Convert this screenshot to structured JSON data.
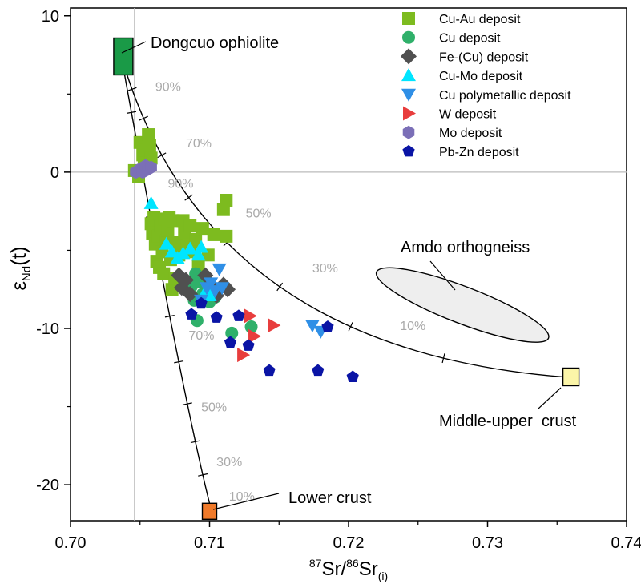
{
  "chart_data": {
    "type": "scatter",
    "xlabel": {
      "base": "Sr",
      "sup1": "87",
      "mid": "Sr/",
      "sup2": "86",
      "sub": "(i)"
    },
    "ylabel": {
      "main": "ε",
      "sub": "Nd",
      "tail": "(t)"
    },
    "xlim": [
      0.7,
      0.74
    ],
    "ylim": [
      -22.3,
      10.5
    ],
    "x_ticks": [
      {
        "value": 0.7,
        "label": "0.70"
      },
      {
        "value": 0.71,
        "label": "0.71"
      },
      {
        "value": 0.72,
        "label": "0.72"
      },
      {
        "value": 0.73,
        "label": "0.73"
      },
      {
        "value": 0.74,
        "label": "0.74"
      }
    ],
    "y_ticks": [
      {
        "value": 10,
        "label": "10"
      },
      {
        "value": 0,
        "label": "0"
      },
      {
        "value": -10,
        "label": "-10"
      },
      {
        "value": -20,
        "label": "-20"
      }
    ],
    "reference_lines": {
      "x": 0.7046,
      "y": 0
    },
    "legend_position": "top-right",
    "series": [
      {
        "name": "Cu-Au deposit",
        "marker": "square",
        "color": "#7dbb1f",
        "points": [
          [
            0.7046,
            0.1
          ],
          [
            0.7049,
            -0.3
          ],
          [
            0.705,
            1.9
          ],
          [
            0.7052,
            1.1
          ],
          [
            0.7053,
            0.4
          ],
          [
            0.7054,
            1.4
          ],
          [
            0.7056,
            2.4
          ],
          [
            0.7057,
            1.7
          ],
          [
            0.7058,
            0.9
          ],
          [
            0.7058,
            -3.3
          ],
          [
            0.7059,
            -3.9
          ],
          [
            0.706,
            -2.9
          ],
          [
            0.7061,
            -4.6
          ],
          [
            0.7062,
            -5.7
          ],
          [
            0.7063,
            -4.1
          ],
          [
            0.7064,
            -6.1
          ],
          [
            0.7065,
            -3.4
          ],
          [
            0.7066,
            -5.1
          ],
          [
            0.7067,
            -6.5
          ],
          [
            0.7068,
            -3.0
          ],
          [
            0.7069,
            -4.4
          ],
          [
            0.707,
            -3.7
          ],
          [
            0.7071,
            -2.9
          ],
          [
            0.7072,
            -5.6
          ],
          [
            0.7073,
            -7.5
          ],
          [
            0.7074,
            -3.1
          ],
          [
            0.7075,
            -6.8
          ],
          [
            0.7076,
            -4.5
          ],
          [
            0.7078,
            -5.3
          ],
          [
            0.7079,
            -7.2
          ],
          [
            0.7081,
            -3.1
          ],
          [
            0.7082,
            -3.9
          ],
          [
            0.7084,
            -4.7
          ],
          [
            0.7086,
            -3.4
          ],
          [
            0.7088,
            -5.1
          ],
          [
            0.709,
            -4.3
          ],
          [
            0.7092,
            -6.0
          ],
          [
            0.7095,
            -3.6
          ],
          [
            0.7099,
            -5.3
          ],
          [
            0.7103,
            -4.0
          ],
          [
            0.711,
            -2.4
          ],
          [
            0.7112,
            -1.8
          ],
          [
            0.7112,
            -4.1
          ]
        ]
      },
      {
        "name": "Cu  deposit",
        "marker": "circle",
        "color": "#2fb06a",
        "points": [
          [
            0.7087,
            -7.3
          ],
          [
            0.7089,
            -8.2
          ],
          [
            0.709,
            -6.5
          ],
          [
            0.7091,
            -9.5
          ],
          [
            0.7093,
            -7.0
          ],
          [
            0.7095,
            -7.8
          ],
          [
            0.7097,
            -6.8
          ],
          [
            0.7099,
            -7.4
          ],
          [
            0.71,
            -8.3
          ],
          [
            0.7102,
            -7.6
          ],
          [
            0.7104,
            -8.0
          ],
          [
            0.7116,
            -10.3
          ],
          [
            0.713,
            -9.9
          ]
        ]
      },
      {
        "name": "Fe-(Cu) deposit",
        "marker": "diamond",
        "color": "#505050",
        "points": [
          [
            0.7078,
            -6.6
          ],
          [
            0.708,
            -7.4
          ],
          [
            0.7083,
            -6.9
          ],
          [
            0.7086,
            -7.8
          ],
          [
            0.7097,
            -6.6
          ],
          [
            0.7101,
            -7.2
          ],
          [
            0.7105,
            -7.9
          ],
          [
            0.711,
            -7.2
          ],
          [
            0.7113,
            -7.5
          ]
        ]
      },
      {
        "name": "Cu-Mo deposit",
        "marker": "triangle-up",
        "color": "#00e5ff",
        "points": [
          [
            0.7058,
            -2.0
          ],
          [
            0.7069,
            -4.6
          ],
          [
            0.7073,
            -5.1
          ],
          [
            0.7077,
            -5.5
          ],
          [
            0.7081,
            -5.2
          ],
          [
            0.7086,
            -4.9
          ],
          [
            0.7092,
            -5.3
          ],
          [
            0.7094,
            -4.8
          ],
          [
            0.7098,
            -7.5
          ],
          [
            0.71,
            -7.9
          ]
        ]
      },
      {
        "name": "Cu polymetallic deposit",
        "marker": "triangle-down",
        "color": "#2f8fe6",
        "points": [
          [
            0.7094,
            -8.2
          ],
          [
            0.7098,
            -7.4
          ],
          [
            0.7101,
            -7.1
          ],
          [
            0.7104,
            -7.6
          ],
          [
            0.7107,
            -6.2
          ],
          [
            0.7109,
            -7.4
          ],
          [
            0.7174,
            -9.8
          ],
          [
            0.718,
            -10.2
          ]
        ]
      },
      {
        "name": "W deposit",
        "marker": "triangle-right",
        "color": "#e83d3d",
        "points": [
          [
            0.7124,
            -11.7
          ],
          [
            0.7129,
            -9.2
          ],
          [
            0.7132,
            -10.5
          ],
          [
            0.7146,
            -9.8
          ]
        ]
      },
      {
        "name": "Mo deposit",
        "marker": "hexagon",
        "color": "#7b6fb7",
        "points": [
          [
            0.7047,
            0.0
          ],
          [
            0.705,
            0.2
          ],
          [
            0.7052,
            0.0
          ],
          [
            0.7054,
            0.4
          ],
          [
            0.7056,
            0.2
          ],
          [
            0.7058,
            0.3
          ]
        ]
      },
      {
        "name": "Pb-Zn deposit",
        "marker": "pentagon",
        "color": "#0a14a5",
        "points": [
          [
            0.7094,
            -8.4
          ],
          [
            0.7087,
            -9.1
          ],
          [
            0.7105,
            -9.3
          ],
          [
            0.7115,
            -10.9
          ],
          [
            0.7121,
            -9.2
          ],
          [
            0.7128,
            -11.1
          ],
          [
            0.7143,
            -12.7
          ],
          [
            0.7178,
            -12.7
          ],
          [
            0.7185,
            -9.9
          ],
          [
            0.7203,
            -13.1
          ]
        ]
      }
    ],
    "end_members": [
      {
        "name": "Dongcuo ophiolite",
        "x": 0.7038,
        "y": 7.4,
        "color": "#1a9a47"
      },
      {
        "name": "Lower crust",
        "x": 0.71,
        "y": -21.7,
        "color": "#f07a2a"
      },
      {
        "name": "Middle-upper  crust",
        "x": 0.736,
        "y": -13.1,
        "color": "#fbf5a8"
      }
    ],
    "field": {
      "name": "Amdo orthogneiss",
      "x": 0.7282,
      "y": -8.5
    },
    "mixing_curves": [
      {
        "from": "Dongcuo ophiolite",
        "to": "Middle-upper  crust",
        "labels": [
          {
            "text": "90%",
            "x": 0.7061,
            "y": 5.5
          },
          {
            "text": "70%",
            "x": 0.7083,
            "y": 1.9
          },
          {
            "text": "50%",
            "x": 0.7126,
            "y": -2.6
          },
          {
            "text": "30%",
            "x": 0.7174,
            "y": -6.1
          },
          {
            "text": "10%",
            "x": 0.7237,
            "y": -9.8
          }
        ]
      },
      {
        "from": "Dongcuo ophiolite",
        "to": "Lower crust",
        "labels": [
          {
            "text": "90%",
            "x": 0.707,
            "y": -0.7
          },
          {
            "text": "70%",
            "x": 0.7085,
            "y": -10.4
          },
          {
            "text": "50%",
            "x": 0.7094,
            "y": -15.0
          },
          {
            "text": "30%",
            "x": 0.7105,
            "y": -18.5
          },
          {
            "text": "10%",
            "x": 0.7114,
            "y": -20.7
          }
        ]
      }
    ]
  }
}
